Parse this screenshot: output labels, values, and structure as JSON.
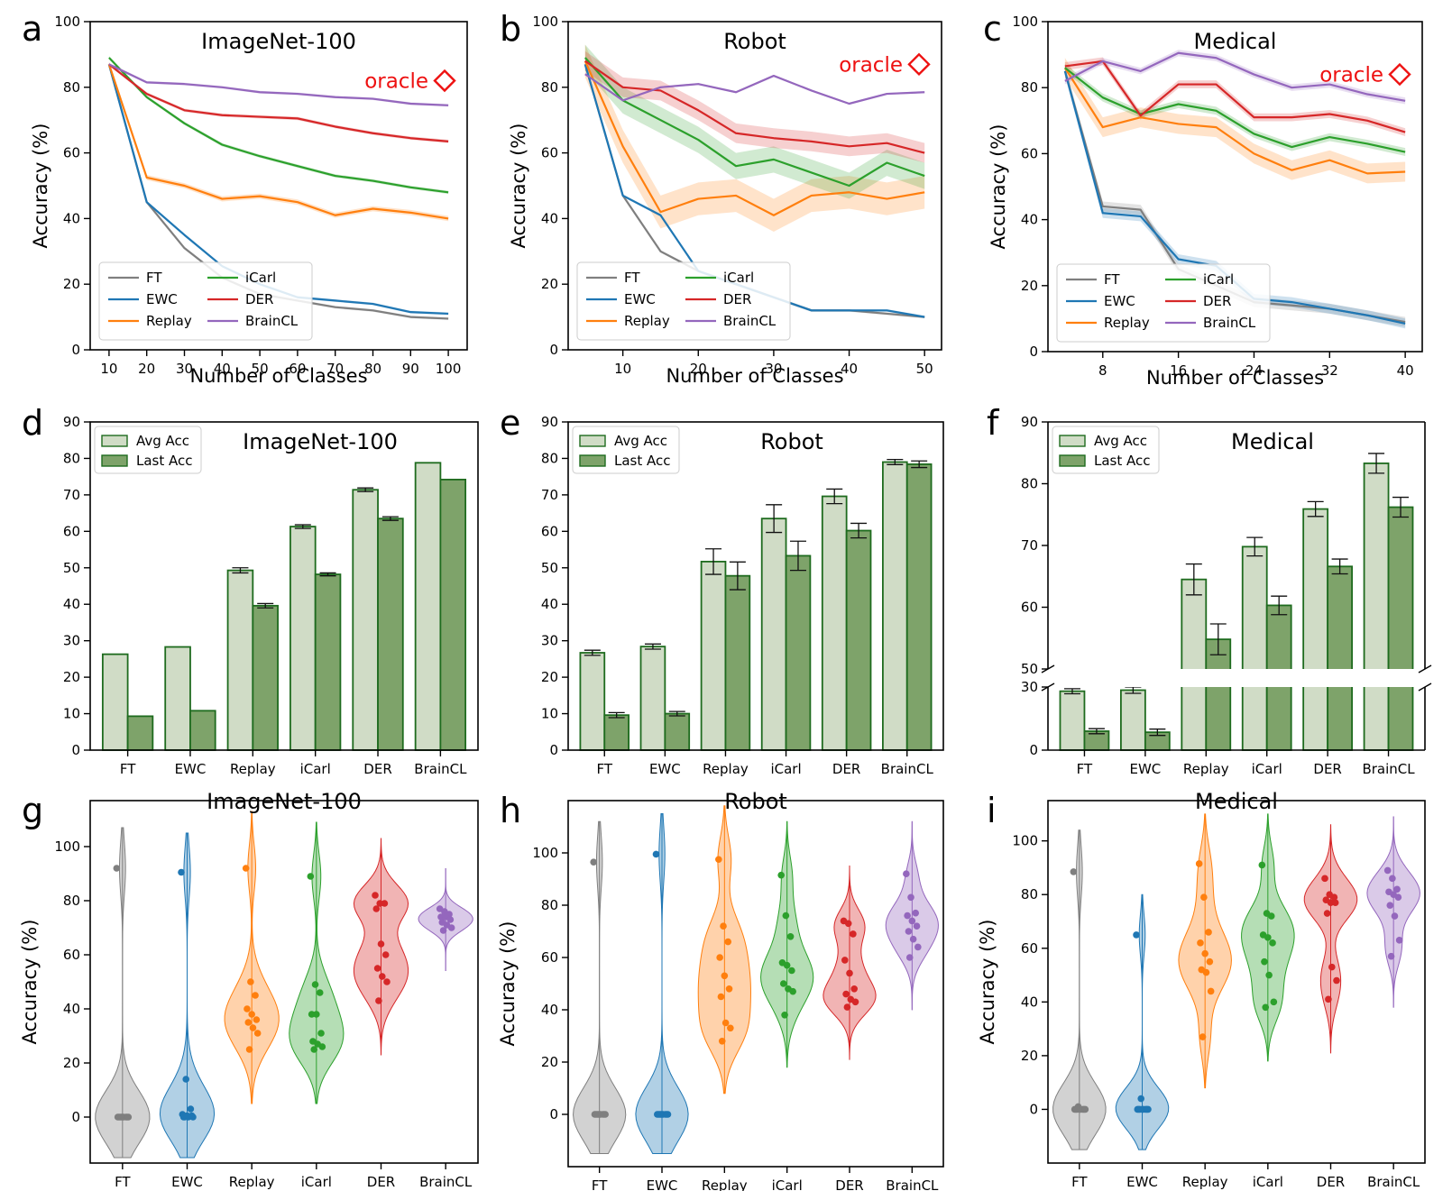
{
  "colors": {
    "FT": "#7f7f7f",
    "EWC": "#1f77b4",
    "Replay": "#ff7f0e",
    "iCarl": "#2ca02c",
    "DER": "#d62728",
    "BrainCL": "#9467bd",
    "avg_fill": "#d0dcc6",
    "last_fill": "#7ea36a",
    "bar_edge": "#1e6b1e",
    "oracle": "#ee1111"
  },
  "chart_data": [
    {
      "id": "a",
      "type": "line",
      "panel_label": "a",
      "title": "ImageNet-100",
      "xlabel": "Number of Classes",
      "ylabel": "Accuracy (%)",
      "ylim": [
        0,
        100
      ],
      "yticks": [
        0,
        20,
        40,
        60,
        80,
        100
      ],
      "xlim": [
        5,
        105
      ],
      "xticks": [
        10,
        20,
        30,
        40,
        50,
        60,
        70,
        80,
        90,
        100
      ],
      "x": [
        10,
        20,
        30,
        40,
        50,
        60,
        70,
        80,
        90,
        100
      ],
      "oracle_label": "oracle",
      "oracle_value": 82,
      "series": [
        {
          "name": "FT",
          "values": [
            87,
            45,
            31,
            22,
            17,
            15,
            13,
            12,
            10,
            9.5
          ],
          "band": 0.4
        },
        {
          "name": "EWC",
          "values": [
            87,
            45,
            35,
            25.5,
            20,
            16,
            15,
            14,
            11.5,
            11
          ],
          "band": 0.4
        },
        {
          "name": "Replay",
          "values": [
            87,
            52.5,
            50,
            46,
            46.8,
            45,
            41,
            43,
            41.8,
            40
          ],
          "band": 0.8
        },
        {
          "name": "iCarl",
          "values": [
            89,
            77,
            69,
            62.5,
            59,
            56,
            53,
            51.5,
            49.5,
            48
          ],
          "band": 0.5
        },
        {
          "name": "DER",
          "values": [
            87,
            78,
            73,
            71.5,
            71,
            70.5,
            68,
            66,
            64.5,
            63.5
          ],
          "band": 0.5
        },
        {
          "name": "BrainCL",
          "values": [
            87,
            81.5,
            81,
            80,
            78.5,
            78,
            77,
            76.5,
            75,
            74.5
          ],
          "band": 0.4
        }
      ]
    },
    {
      "id": "b",
      "type": "line",
      "panel_label": "b",
      "title": "Robot",
      "xlabel": "Number of Classes",
      "ylabel": "Accuracy (%)",
      "ylim": [
        0,
        100
      ],
      "yticks": [
        0,
        20,
        40,
        60,
        80,
        100
      ],
      "xlim": [
        2.75,
        52.25
      ],
      "xticks": [
        10,
        20,
        30,
        40,
        50
      ],
      "x": [
        5,
        10,
        15,
        20,
        25,
        30,
        35,
        40,
        45,
        50
      ],
      "oracle_label": "oracle",
      "oracle_value": 87,
      "series": [
        {
          "name": "FT",
          "values": [
            87,
            47,
            30,
            24,
            20,
            16,
            12,
            12,
            11,
            10
          ],
          "band": 0.4
        },
        {
          "name": "EWC",
          "values": [
            87,
            47,
            41,
            24,
            20,
            16,
            12,
            12,
            12,
            10
          ],
          "band": 0.4
        },
        {
          "name": "Replay",
          "values": [
            88,
            62,
            42,
            46,
            47,
            41,
            47,
            48,
            46,
            48
          ],
          "band": 5
        },
        {
          "name": "iCarl",
          "values": [
            89,
            76,
            70,
            64,
            56,
            58,
            54,
            50,
            57,
            53
          ],
          "band": 4
        },
        {
          "name": "DER",
          "values": [
            88,
            80,
            79,
            73,
            66,
            64.5,
            63.5,
            62,
            63,
            60
          ],
          "band": 3
        },
        {
          "name": "BrainCL",
          "values": [
            84,
            76,
            80,
            81,
            78.5,
            83.5,
            79,
            75,
            78,
            78.5
          ],
          "band": 0.3
        }
      ]
    },
    {
      "id": "c",
      "type": "line",
      "panel_label": "c",
      "title": "Medical",
      "xlabel": "Number of Classes",
      "ylabel": "Accuracy (%)",
      "ylim": [
        0,
        100
      ],
      "yticks": [
        0,
        20,
        40,
        60,
        80,
        100
      ],
      "xlim": [
        2.2,
        41.8
      ],
      "xticks": [
        8,
        16,
        24,
        32,
        40
      ],
      "x": [
        4,
        8,
        12,
        16,
        20,
        24,
        28,
        32,
        36,
        40
      ],
      "oracle_label": "oracle",
      "oracle_value": 84,
      "series": [
        {
          "name": "FT",
          "values": [
            85,
            44,
            43,
            25,
            20,
            15,
            14,
            13,
            11,
            9
          ],
          "band": 1.5
        },
        {
          "name": "EWC",
          "values": [
            85,
            42,
            41,
            28,
            26,
            16,
            15,
            13,
            11,
            8.5
          ],
          "band": 1.5
        },
        {
          "name": "Replay",
          "values": [
            86,
            68,
            71,
            69,
            68,
            60,
            55,
            58,
            54,
            54.5
          ],
          "band": 3
        },
        {
          "name": "iCarl",
          "values": [
            86,
            77,
            72,
            75,
            73,
            66,
            62,
            65,
            63,
            60.5
          ],
          "band": 1.2
        },
        {
          "name": "DER",
          "values": [
            86.5,
            88,
            71.5,
            81,
            81,
            71,
            71,
            72,
            70,
            66.5
          ],
          "band": 1.2
        },
        {
          "name": "BrainCL",
          "values": [
            82,
            88,
            85,
            90.5,
            89,
            84,
            80,
            81,
            78,
            76
          ],
          "band": 1
        }
      ]
    },
    {
      "id": "d",
      "type": "bar",
      "panel_label": "d",
      "title": "ImageNet-100",
      "categories": [
        "FT",
        "EWC",
        "Replay",
        "iCarl",
        "DER",
        "BrainCL"
      ],
      "ylim": [
        0,
        90
      ],
      "yticks": [
        0,
        10,
        20,
        30,
        40,
        50,
        60,
        70,
        80,
        90
      ],
      "legend": [
        "Avg Acc",
        "Last Acc"
      ],
      "series": [
        {
          "name": "Avg Acc",
          "values": [
            26.3,
            28.3,
            49.3,
            61.3,
            71.4,
            78.8
          ],
          "errors": [
            0,
            0,
            0.7,
            0.5,
            0.5,
            0
          ]
        },
        {
          "name": "Last Acc",
          "values": [
            9.3,
            10.8,
            39.6,
            48.2,
            63.5,
            74.2
          ],
          "errors": [
            0,
            0,
            0.6,
            0.4,
            0.5,
            0
          ]
        }
      ]
    },
    {
      "id": "e",
      "type": "bar",
      "panel_label": "e",
      "title": "Robot",
      "categories": [
        "FT",
        "EWC",
        "Replay",
        "iCarl",
        "DER",
        "BrainCL"
      ],
      "ylim": [
        0,
        90
      ],
      "yticks": [
        0,
        10,
        20,
        30,
        40,
        50,
        60,
        70,
        80,
        90
      ],
      "legend": [
        "Avg Acc",
        "Last Acc"
      ],
      "series": [
        {
          "name": "Avg Acc",
          "values": [
            26.7,
            28.4,
            51.7,
            63.5,
            69.6,
            79
          ],
          "errors": [
            0.7,
            0.7,
            3.5,
            3.8,
            2,
            0.7
          ]
        },
        {
          "name": "Last Acc",
          "values": [
            9.6,
            10,
            47.8,
            53.3,
            60.2,
            78.4
          ],
          "errors": [
            0.7,
            0.6,
            3.8,
            4,
            2,
            0.9
          ]
        }
      ]
    },
    {
      "id": "f",
      "type": "bar",
      "panel_label": "f",
      "title": "Medical",
      "categories": [
        "FT",
        "EWC",
        "Replay",
        "iCarl",
        "DER",
        "BrainCL"
      ],
      "broken_axis": true,
      "lower_ylim": [
        0,
        30
      ],
      "lower_yticks": [
        0,
        30
      ],
      "upper_ylim": [
        50,
        90
      ],
      "upper_yticks": [
        50,
        60,
        70,
        80,
        90
      ],
      "legend": [
        "Avg Acc",
        "Last Acc"
      ],
      "series": [
        {
          "name": "Avg Acc",
          "values": [
            28,
            28.5,
            64.5,
            69.8,
            75.9,
            83.3
          ],
          "errors": [
            1.2,
            1.5,
            2.5,
            1.5,
            1.2,
            1.6
          ]
        },
        {
          "name": "Last Acc",
          "values": [
            9,
            8.5,
            54.8,
            60.3,
            66.6,
            76.2
          ],
          "errors": [
            1.2,
            1.5,
            2.5,
            1.5,
            1.2,
            1.6
          ]
        }
      ]
    },
    {
      "id": "g",
      "type": "violin",
      "panel_label": "g",
      "title": "ImageNet-100",
      "ylabel": "Accuracy (%)",
      "categories": [
        "FT",
        "EWC",
        "Replay",
        "iCarl",
        "DER",
        "BrainCL"
      ],
      "ylim": [
        -17,
        117
      ],
      "yticks": [
        0,
        20,
        40,
        60,
        80,
        100
      ],
      "violins": [
        {
          "name": "FT",
          "min": -15,
          "max": 107,
          "points": [
            92,
            0,
            0,
            0,
            0,
            0,
            0,
            0,
            0,
            0
          ]
        },
        {
          "name": "EWC",
          "min": -15,
          "max": 105,
          "points": [
            90.5,
            14,
            3,
            1,
            0.5,
            0.5,
            0,
            0,
            0,
            0
          ]
        },
        {
          "name": "Replay",
          "min": 5,
          "max": 113,
          "points": [
            92,
            50,
            45,
            40,
            38,
            36,
            35,
            33,
            31,
            25
          ]
        },
        {
          "name": "iCarl",
          "min": 5,
          "max": 109,
          "points": [
            89,
            49,
            46,
            38,
            38,
            31,
            28,
            27,
            26,
            25
          ]
        },
        {
          "name": "DER",
          "min": 23,
          "max": 103,
          "points": [
            82,
            79,
            79,
            77,
            64,
            60,
            55,
            52,
            50,
            43
          ]
        },
        {
          "name": "BrainCL",
          "min": 54,
          "max": 92,
          "points": [
            77,
            76,
            75,
            74,
            74,
            73,
            72,
            71,
            70,
            69
          ]
        }
      ]
    },
    {
      "id": "h",
      "type": "violin",
      "panel_label": "h",
      "title": "Robot",
      "ylabel": "Accuracy (%)",
      "categories": [
        "FT",
        "EWC",
        "Replay",
        "iCarl",
        "DER",
        "BrainCL"
      ],
      "ylim": [
        -20,
        120
      ],
      "yticks": [
        0,
        20,
        40,
        60,
        80,
        100
      ],
      "violins": [
        {
          "name": "FT",
          "min": -15,
          "max": 112,
          "points": [
            96.5,
            0,
            0,
            0,
            0,
            0,
            0,
            0,
            0,
            0
          ]
        },
        {
          "name": "EWC",
          "min": -15,
          "max": 115,
          "points": [
            99.5,
            0,
            0,
            0,
            0,
            0,
            0,
            0,
            0,
            0
          ]
        },
        {
          "name": "Replay",
          "min": 8,
          "max": 118,
          "points": [
            97.5,
            72,
            66,
            60,
            53,
            48,
            45,
            35,
            33,
            28
          ]
        },
        {
          "name": "iCarl",
          "min": 18,
          "max": 112,
          "points": [
            91.5,
            76,
            68,
            58,
            57,
            55,
            50,
            48,
            47,
            38
          ]
        },
        {
          "name": "DER",
          "min": 21,
          "max": 95,
          "points": [
            74,
            73,
            69,
            59,
            54,
            48,
            46,
            44,
            43,
            41
          ]
        },
        {
          "name": "BrainCL",
          "min": 40,
          "max": 112,
          "points": [
            92,
            83,
            77,
            76,
            74,
            72,
            70,
            67,
            64,
            60
          ]
        }
      ]
    },
    {
      "id": "i",
      "type": "violin",
      "panel_label": "i",
      "title": "Medical",
      "ylabel": "Accuracy (%)",
      "categories": [
        "FT",
        "EWC",
        "Replay",
        "iCarl",
        "DER",
        "BrainCL"
      ],
      "ylim": [
        -20,
        115
      ],
      "yticks": [
        0,
        20,
        40,
        60,
        80,
        100
      ],
      "violins": [
        {
          "name": "FT",
          "min": -15,
          "max": 104,
          "points": [
            88.5,
            1,
            0,
            0,
            0,
            0,
            0,
            0,
            0,
            0
          ]
        },
        {
          "name": "EWC",
          "min": -15,
          "max": 80,
          "points": [
            65,
            4,
            0,
            0,
            0,
            0,
            0,
            0,
            0,
            0
          ]
        },
        {
          "name": "Replay",
          "min": 8,
          "max": 110,
          "points": [
            91.5,
            79,
            66,
            62,
            58,
            55,
            52,
            51,
            44,
            27
          ]
        },
        {
          "name": "iCarl",
          "min": 18,
          "max": 110,
          "points": [
            91,
            73,
            72,
            65,
            64,
            62,
            55,
            50,
            40,
            38
          ]
        },
        {
          "name": "DER",
          "min": 21,
          "max": 106,
          "points": [
            86,
            80,
            79,
            78,
            77,
            77,
            73,
            53,
            48,
            41
          ]
        },
        {
          "name": "BrainCL",
          "min": 38,
          "max": 109,
          "points": [
            89,
            86,
            82,
            81,
            80,
            79,
            76,
            72,
            63,
            57
          ]
        }
      ]
    }
  ]
}
